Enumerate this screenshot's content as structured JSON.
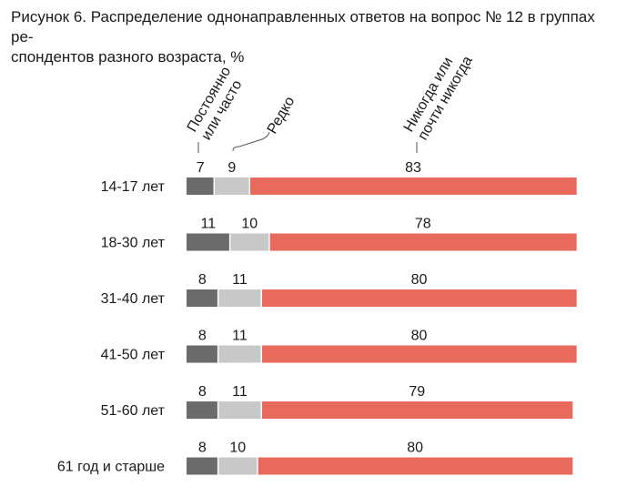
{
  "title_line1": "Рисунок 6. Распределение однонаправленных ответов на вопрос № 12 в группах ре-",
  "title_line2": "спондентов разного возраста, %",
  "chart_data": {
    "type": "bar",
    "orientation": "horizontal",
    "stacked": true,
    "unit": "%",
    "categories": [
      "14-17 лет",
      "18-30 лет",
      "31-40 лет",
      "41-50 лет",
      "51-60 лет",
      "61 год и старше"
    ],
    "series": [
      {
        "name": "Постоянно или часто",
        "label_lines": [
          "Постоянно",
          "или часто"
        ],
        "color": "#6b6b6b",
        "values": [
          7,
          11,
          8,
          8,
          8,
          8
        ]
      },
      {
        "name": "Редко",
        "label_lines": [
          "Редко"
        ],
        "color": "#c8c8c8",
        "values": [
          9,
          10,
          11,
          11,
          11,
          10
        ]
      },
      {
        "name": "Никогда или почти никогда",
        "label_lines": [
          "Никогда или",
          "почти никогда"
        ],
        "color": "#e86a5d",
        "values": [
          83,
          78,
          80,
          80,
          79,
          80
        ]
      }
    ],
    "xlim": [
      0,
      100
    ]
  }
}
